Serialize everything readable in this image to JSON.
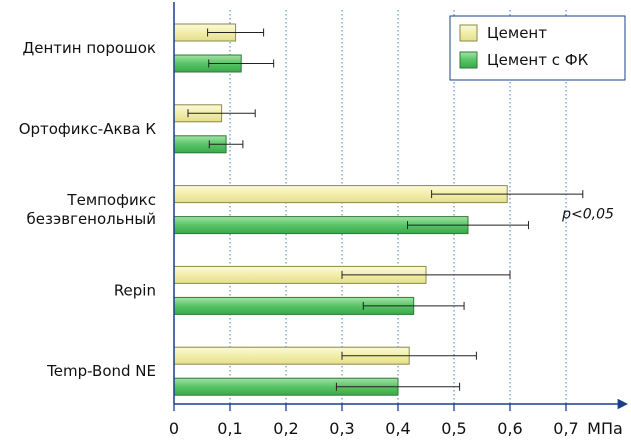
{
  "chart_data": {
    "type": "bar",
    "orientation": "horizontal",
    "categories": [
      [
        "Дентин порошок"
      ],
      [
        "Ортофикс-Аква К"
      ],
      [
        "Темпофикс",
        "безэвгенольный"
      ],
      [
        "Repin"
      ],
      [
        "Temp-Bond NE"
      ]
    ],
    "series": [
      {
        "name": "Цемент",
        "color": "#f4f1b0",
        "stroke": "#8a8a4a",
        "values": [
          0.11,
          0.085,
          0.595,
          0.45,
          0.42
        ],
        "errors": [
          0.05,
          0.06,
          0.135,
          0.15,
          0.12
        ]
      },
      {
        "name": "Цемент с ФК",
        "color": "#5cc66a",
        "stroke": "#2c7a37",
        "values": [
          0.12,
          0.093,
          0.525,
          0.428,
          0.4
        ],
        "errors": [
          0.058,
          0.03,
          0.108,
          0.09,
          0.11
        ]
      }
    ],
    "xlim": [
      0,
      0.8
    ],
    "xticks": [
      "0",
      "0,1",
      "0,2",
      "0,3",
      "0,4",
      "0,5",
      "0,6",
      "0,7"
    ],
    "xunit": "МПа",
    "grid": "vertical-dotted",
    "legend_position": "top-right",
    "annotation": {
      "text": "p<0,05",
      "category_index": 2
    }
  }
}
